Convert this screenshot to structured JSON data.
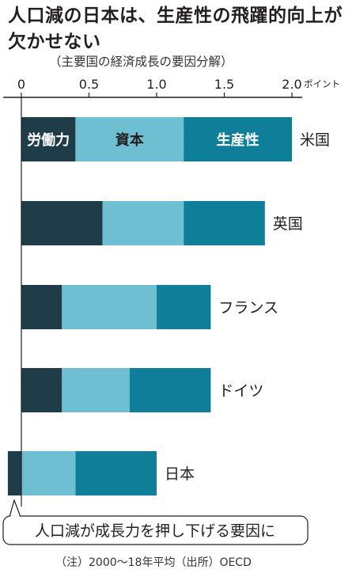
{
  "header": {
    "title": "人口減の日本は、生産性の飛躍的向上が欠かせない",
    "subtitle": "（主要国の経済成長の要因分解）"
  },
  "chart_data": {
    "type": "bar",
    "orientation": "horizontal",
    "stacked": true,
    "categories": [
      "米国",
      "英国",
      "フランス",
      "ドイツ",
      "日本"
    ],
    "series": [
      {
        "name": "労働力",
        "color": "#1e3d48",
        "values": [
          0.4,
          0.6,
          0.3,
          0.3,
          -0.1
        ]
      },
      {
        "name": "資本",
        "color": "#6fbfd2",
        "values": [
          0.8,
          0.6,
          0.7,
          0.5,
          0.4
        ]
      },
      {
        "name": "生産性",
        "color": "#0f7f99",
        "values": [
          0.8,
          0.6,
          0.4,
          0.6,
          0.6
        ]
      }
    ],
    "xlim": [
      -0.1,
      2.0
    ],
    "xticks": [
      "0",
      "0.5",
      "1.0",
      "1.5",
      "2.0"
    ],
    "xtick_values": [
      0,
      0.5,
      1.0,
      1.5,
      2.0
    ],
    "unit": "ポイント",
    "annotation": "人口減が成長力を押し下げる要因に",
    "grid": false,
    "legend": "inside-first-bar"
  },
  "footer": {
    "note": "（注）2000〜18年平均（出所）OECD"
  }
}
